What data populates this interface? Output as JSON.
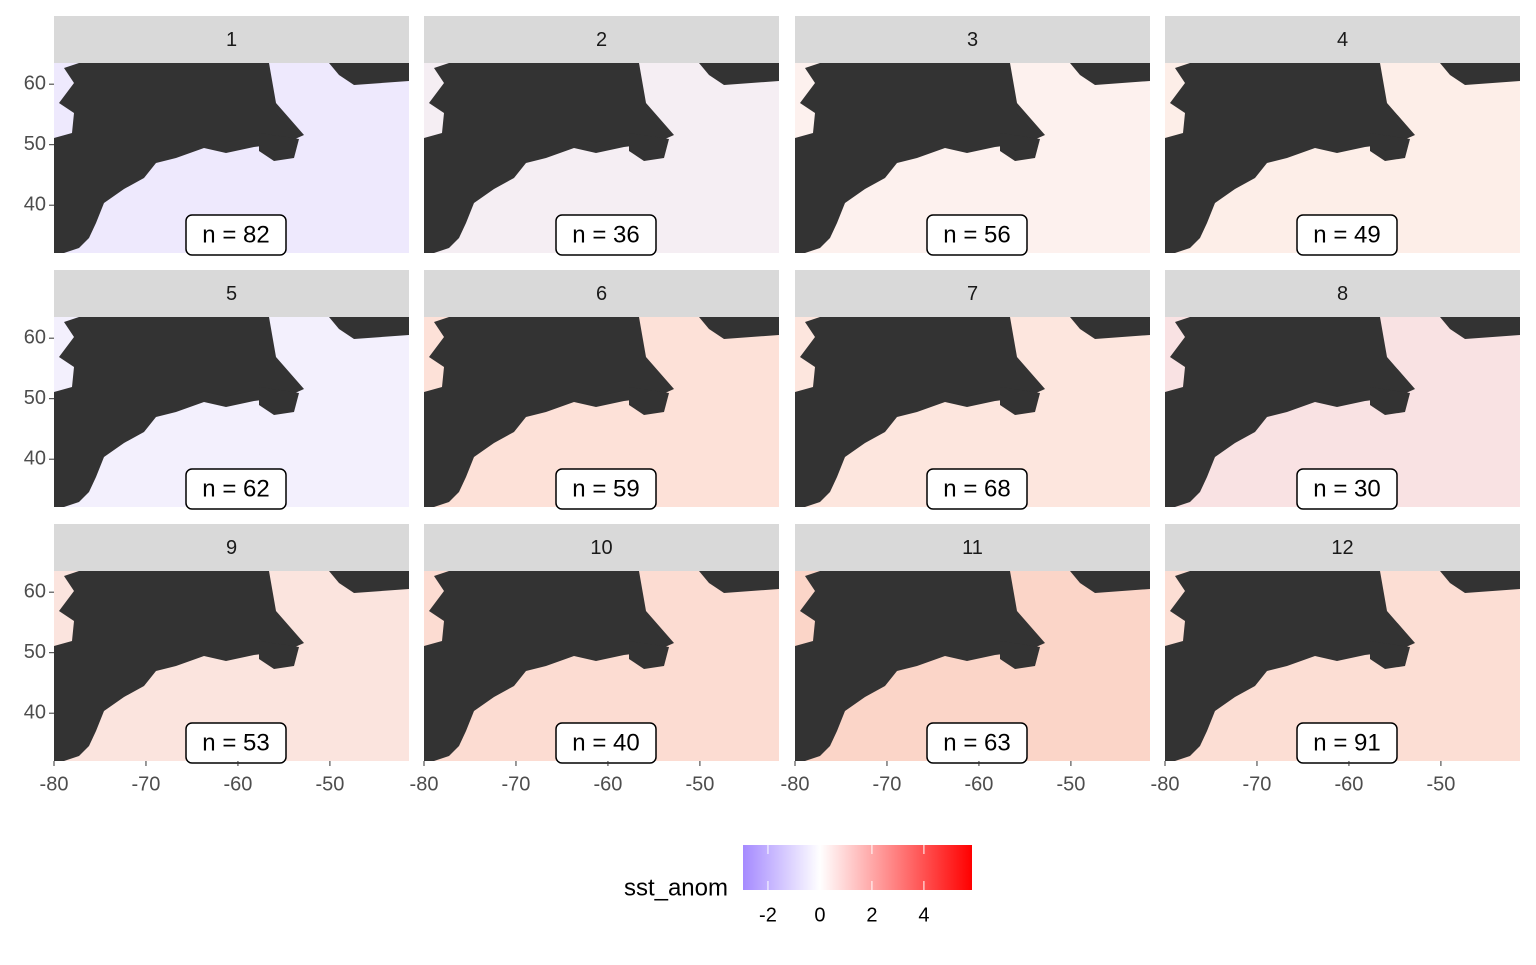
{
  "chart_data": {
    "type": "facet-map",
    "facets": [
      {
        "title": "1",
        "label": "n = 82",
        "color": "#eee9fd"
      },
      {
        "title": "2",
        "label": "n = 36",
        "color": "#f5eef3"
      },
      {
        "title": "3",
        "label": "n = 56",
        "color": "#fdf1ee"
      },
      {
        "title": "4",
        "label": "n = 49",
        "color": "#fdeee8"
      },
      {
        "title": "5",
        "label": "n = 62",
        "color": "#f3f0fd"
      },
      {
        "title": "6",
        "label": "n = 59",
        "color": "#fde1d8"
      },
      {
        "title": "7",
        "label": "n = 68",
        "color": "#fde6de"
      },
      {
        "title": "8",
        "label": "n = 30",
        "color": "#f9e2e3"
      },
      {
        "title": "9",
        "label": "n = 53",
        "color": "#fbe4de"
      },
      {
        "title": "10",
        "label": "n = 40",
        "color": "#fcdcd2"
      },
      {
        "title": "11",
        "label": "n = 63",
        "color": "#fbd5c8"
      },
      {
        "title": "12",
        "label": "n = 91",
        "color": "#fcded4"
      }
    ],
    "land_color": "#333333",
    "xlim": [
      -80,
      -41.4
    ],
    "xticks": [
      -80,
      -70,
      -60,
      -50
    ],
    "ylim": [
      32.1,
      63.5
    ],
    "yticks": [
      40,
      50,
      60
    ],
    "legend": {
      "title": "sst_anom",
      "lim": [
        -2.96,
        5.85
      ],
      "ticks": [
        -2,
        0,
        2,
        4
      ],
      "colors": [
        "#a58aff",
        "#ffffff",
        "#ff0000"
      ]
    }
  }
}
